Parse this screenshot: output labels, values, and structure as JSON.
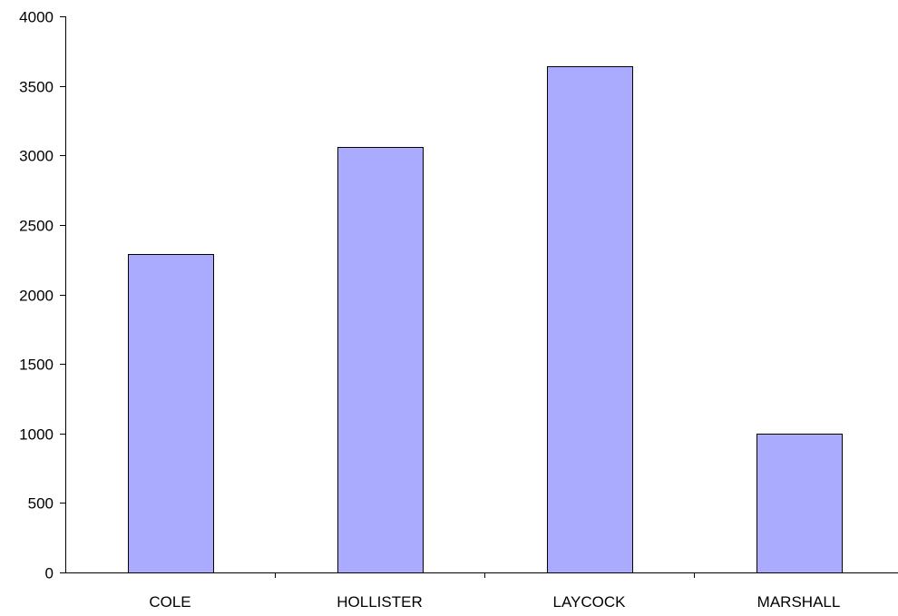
{
  "chart_data": {
    "type": "bar",
    "title": "",
    "xlabel": "",
    "ylabel": "",
    "categories": [
      "COLE",
      "HOLLISTER",
      "LAYCOCK",
      "MARSHALL"
    ],
    "values": [
      2290,
      3060,
      3640,
      1000
    ],
    "ylim": [
      0,
      4000
    ],
    "yticks": [
      0,
      500,
      1000,
      1500,
      2000,
      2500,
      3000,
      3500,
      4000
    ],
    "grid": false,
    "legend": "none",
    "colors": {
      "bar_fill": "#aaaaff",
      "bar_stroke": "#000000",
      "axis": "#000000",
      "background": "#ffffff"
    }
  }
}
